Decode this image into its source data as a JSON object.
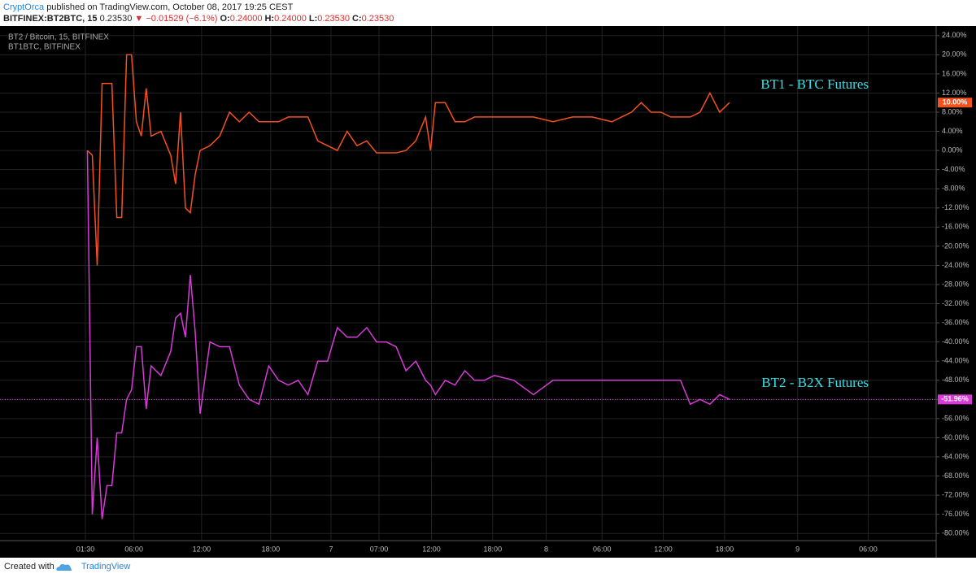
{
  "header": {
    "author": "CryptOrca",
    "published": "published on TradingView.com, October 08, 2017 19:25 CEST",
    "symbol": "BITFINEX:BT2BTC, 15",
    "price": "0.23530",
    "change": "▼ −0.01529 (−6.1%)",
    "ohlc": [
      {
        "label": "O:",
        "value": "0.24000"
      },
      {
        "label": "H:",
        "value": "0.24000"
      },
      {
        "label": "L:",
        "value": "0.23530"
      },
      {
        "label": "C:",
        "value": "0.23530"
      }
    ]
  },
  "footer": {
    "created": "Created with",
    "brand": "TradingView"
  },
  "chart_data": {
    "type": "line",
    "annotations": [
      "BT1 - BTC Futures",
      "BT2 - B2X Futures"
    ],
    "x": [
      17,
      18,
      19,
      20,
      21,
      22,
      23,
      24,
      25,
      26,
      27,
      28,
      29,
      30,
      32,
      34,
      35,
      36,
      37,
      38,
      39,
      40,
      42,
      44,
      46,
      48,
      50,
      52,
      54,
      56,
      58,
      60,
      62,
      64,
      66,
      68,
      70,
      72,
      74,
      76,
      78,
      80,
      82,
      84,
      86,
      87,
      88,
      90,
      92,
      94,
      96,
      98,
      100,
      104,
      108,
      112,
      116,
      120,
      124,
      128,
      130,
      132,
      134,
      136,
      138,
      140,
      142,
      144,
      146,
      148
    ],
    "series": [
      {
        "name": "BT2 / Bitcoin, 15, BITFINEX",
        "color": "#d83ad8",
        "last_value_label": "-51.96%",
        "values": [
          0,
          -76,
          -60,
          -77,
          -70,
          -70,
          -59,
          -59,
          -52,
          -50,
          -41,
          -41,
          -54,
          -45,
          -47,
          -42,
          -35,
          -34,
          -39,
          -26,
          -38,
          -55,
          -40,
          -41,
          -41,
          -49,
          -52,
          -53,
          -45,
          -48,
          -49,
          -48,
          -51,
          -44,
          -44,
          -37,
          -39,
          -39,
          -37,
          -40,
          -40,
          -41,
          -46,
          -44,
          -48,
          -49,
          -51,
          -48,
          -49,
          -46,
          -48,
          -48,
          -47,
          -48,
          -51,
          -48,
          -48,
          -48,
          -48,
          -48,
          -48,
          -48,
          -48,
          -48,
          -48,
          -53,
          -52,
          -53,
          -51,
          -52
        ]
      },
      {
        "name": "BT1BTC, BITFINEX",
        "color": "#f4511e",
        "last_value_label": "10.00%",
        "values": [
          0,
          -1,
          -24,
          14,
          14,
          14,
          -14,
          -14,
          20,
          20,
          6,
          3,
          13,
          3,
          4,
          -1,
          -7,
          8,
          -12,
          -13,
          -5,
          0,
          1,
          3,
          8,
          6,
          8,
          6,
          6,
          6,
          7,
          7,
          7,
          2,
          1,
          0,
          4,
          1,
          2,
          -0.5,
          -0.5,
          -0.5,
          0,
          2,
          7,
          0,
          10,
          10,
          6,
          6,
          7,
          7,
          7,
          7,
          7,
          6,
          7,
          7,
          6,
          8,
          10,
          8,
          8,
          7,
          7,
          7,
          8,
          12,
          8,
          10
        ]
      }
    ],
    "xlim": [
      0,
      190
    ],
    "xticks": [
      {
        "value": 16.6,
        "label": "01:30"
      },
      {
        "value": 26.5,
        "label": "06:00"
      },
      {
        "value": 40.3,
        "label": "12:00"
      },
      {
        "value": 54.4,
        "label": "18:00"
      },
      {
        "value": 66.7,
        "label": "7"
      },
      {
        "value": 76.5,
        "label": "07:00"
      },
      {
        "value": 87.2,
        "label": "12:00"
      },
      {
        "value": 99.7,
        "label": "18:00"
      },
      {
        "value": 110.6,
        "label": "8"
      },
      {
        "value": 122,
        "label": "06:00"
      },
      {
        "value": 134.5,
        "label": "12:00"
      },
      {
        "value": 147,
        "label": "18:00"
      },
      {
        "value": 161.9,
        "label": "9"
      },
      {
        "value": 176.3,
        "label": "06:00"
      }
    ],
    "ylim": [
      -82,
      26
    ],
    "yticks": [
      {
        "value": 24,
        "label": "24.00%"
      },
      {
        "value": 20,
        "label": "20.00%"
      },
      {
        "value": 16,
        "label": "16.00%"
      },
      {
        "value": 12,
        "label": "12.00%"
      },
      {
        "value": 8,
        "label": "8.00%"
      },
      {
        "value": 4,
        "label": "4.00%"
      },
      {
        "value": 0,
        "label": "0.00%"
      },
      {
        "value": -4,
        "label": "-4.00%"
      },
      {
        "value": -8,
        "label": "-8.00%"
      },
      {
        "value": -12,
        "label": "-12.00%"
      },
      {
        "value": -16,
        "label": "-16.00%"
      },
      {
        "value": -20,
        "label": "-20.00%"
      },
      {
        "value": -24,
        "label": "-24.00%"
      },
      {
        "value": -28,
        "label": "-28.00%"
      },
      {
        "value": -32,
        "label": "-32.00%"
      },
      {
        "value": -36,
        "label": "-36.00%"
      },
      {
        "value": -40,
        "label": "-40.00%"
      },
      {
        "value": -44,
        "label": "-44.00%"
      },
      {
        "value": -48,
        "label": "-48.00%"
      },
      {
        "value": -52,
        "label": "-52.00%"
      },
      {
        "value": -56,
        "label": "-56.00%"
      },
      {
        "value": -60,
        "label": "-60.00%"
      },
      {
        "value": -64,
        "label": "-64.00%"
      },
      {
        "value": -68,
        "label": "-68.00%"
      },
      {
        "value": -72,
        "label": "-72.00%"
      },
      {
        "value": -76,
        "label": "-76.00%"
      },
      {
        "value": -80,
        "label": "-80.00%"
      }
    ],
    "grid": true
  }
}
